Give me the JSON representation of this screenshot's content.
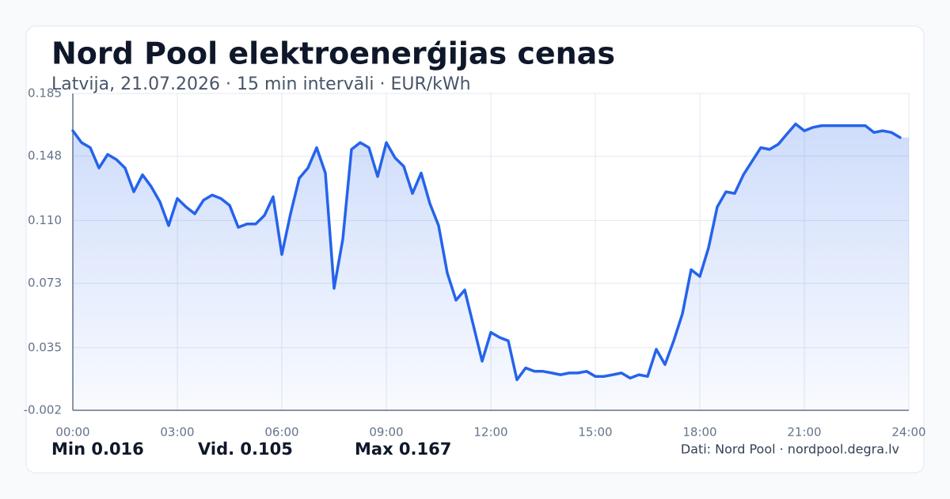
{
  "chart_data": {
    "type": "line",
    "title": "Nord Pool elektroenerģijas cenas",
    "subtitle": "Latvija, 21.07.2026 · 15 min intervāli · EUR/kWh",
    "stats": [
      "Min 0.016",
      "Vid. 0.105",
      "Max 0.167"
    ],
    "source": "Dati: Nord Pool · nordpool.degra.lv",
    "x": [
      0,
      0.25,
      0.5,
      0.75,
      1,
      1.25,
      1.5,
      1.75,
      2,
      2.25,
      2.5,
      2.75,
      3,
      3.25,
      3.5,
      3.75,
      4,
      4.25,
      4.5,
      4.75,
      5,
      5.25,
      5.5,
      5.75,
      6,
      6.25,
      6.5,
      6.75,
      7,
      7.25,
      7.5,
      7.75,
      8,
      8.25,
      8.5,
      8.75,
      9,
      9.25,
      9.5,
      9.75,
      10,
      10.25,
      10.5,
      10.75,
      11,
      11.25,
      11.5,
      11.75,
      12,
      12.25,
      12.5,
      12.75,
      13,
      13.25,
      13.5,
      13.75,
      14,
      14.25,
      14.5,
      14.75,
      15,
      15.25,
      15.5,
      15.75,
      16,
      16.25,
      16.5,
      16.75,
      17,
      17.25,
      17.5,
      17.75,
      18,
      18.25,
      18.5,
      18.75,
      19,
      19.25,
      19.5,
      19.75,
      20,
      20.25,
      20.5,
      20.75,
      21,
      21.25,
      21.5,
      21.75,
      22,
      22.25,
      22.5,
      22.75,
      23,
      23.25,
      23.5,
      23.75
    ],
    "series": [
      {
        "color": "#2563eb",
        "values": [
          0.163,
          0.156,
          0.153,
          0.141,
          0.149,
          0.146,
          0.141,
          0.127,
          0.137,
          0.13,
          0.121,
          0.107,
          0.123,
          0.118,
          0.114,
          0.122,
          0.125,
          0.123,
          0.119,
          0.106,
          0.108,
          0.108,
          0.113,
          0.124,
          0.09,
          0.114,
          0.135,
          0.141,
          0.153,
          0.138,
          0.07,
          0.099,
          0.152,
          0.156,
          0.153,
          0.136,
          0.156,
          0.147,
          0.142,
          0.126,
          0.138,
          0.12,
          0.107,
          0.079,
          0.063,
          0.069,
          0.048,
          0.027,
          0.044,
          0.041,
          0.039,
          0.016,
          0.023,
          0.021,
          0.021,
          0.02,
          0.019,
          0.02,
          0.02,
          0.021,
          0.018,
          0.018,
          0.019,
          0.02,
          0.017,
          0.019,
          0.018,
          0.034,
          0.025,
          0.039,
          0.055,
          0.081,
          0.077,
          0.094,
          0.118,
          0.127,
          0.126,
          0.137,
          0.145,
          0.153,
          0.152,
          0.155,
          0.161,
          0.167,
          0.163,
          0.165,
          0.166,
          0.166,
          0.166,
          0.166,
          0.166,
          0.166,
          0.162,
          0.163,
          0.162,
          0.159
        ]
      }
    ],
    "xlim": [
      0,
      24
    ],
    "xticks": [
      {
        "value": 0,
        "label": "00:00"
      },
      {
        "value": 3,
        "label": "03:00"
      },
      {
        "value": 6,
        "label": "06:00"
      },
      {
        "value": 9,
        "label": "09:00"
      },
      {
        "value": 12,
        "label": "12:00"
      },
      {
        "value": 15,
        "label": "15:00"
      },
      {
        "value": 18,
        "label": "18:00"
      },
      {
        "value": 21,
        "label": "21:00"
      },
      {
        "value": 24,
        "label": "24:00"
      }
    ],
    "ylim": [
      -0.002,
      0.185
    ],
    "yticks": [
      -0.002,
      0.035,
      0.073,
      {
        "value": 0.11,
        "label": "0.110"
      },
      0.148,
      0.185
    ],
    "grid": true
  }
}
